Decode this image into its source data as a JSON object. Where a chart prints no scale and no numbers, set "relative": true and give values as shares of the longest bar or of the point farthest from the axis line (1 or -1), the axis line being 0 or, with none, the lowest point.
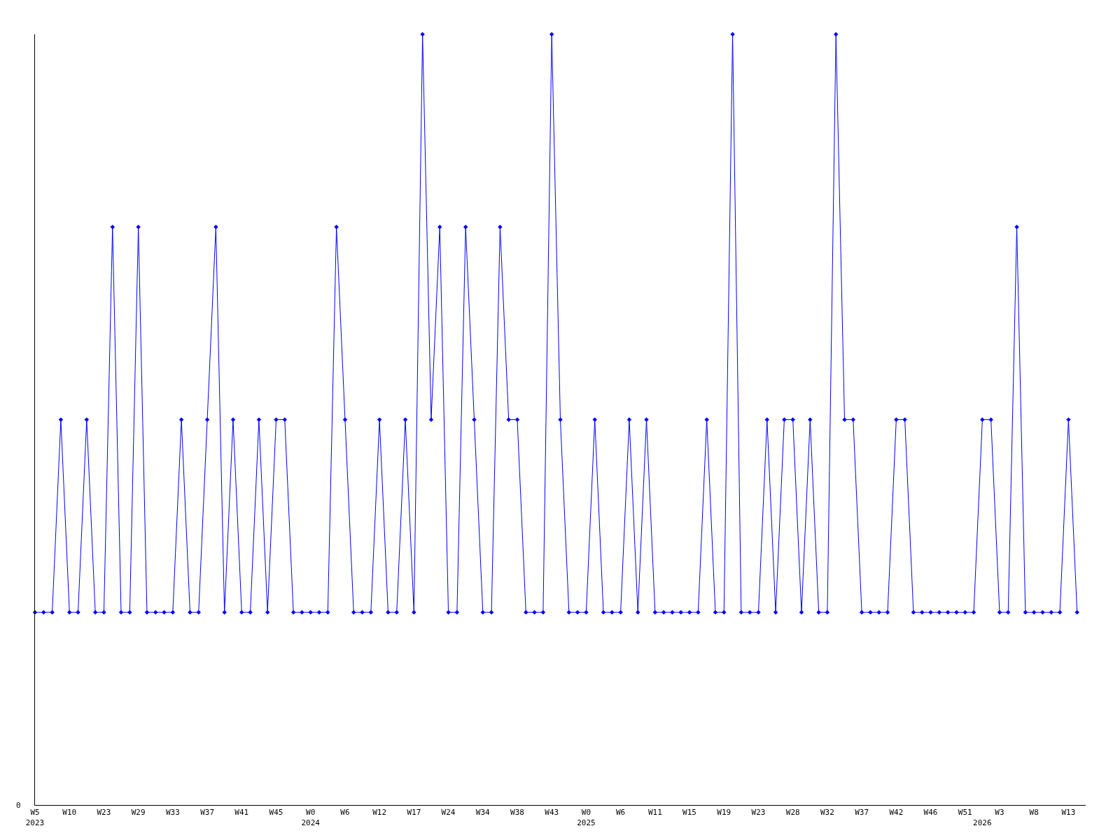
{
  "chart_data": {
    "type": "line",
    "relative": true,
    "marker": "diamond",
    "line_style": "solid",
    "annotations": [
      "0"
    ],
    "categories": [
      "W5\n2023",
      null,
      null,
      null,
      "W10",
      null,
      null,
      null,
      "W23",
      null,
      null,
      null,
      "W29",
      null,
      null,
      null,
      "W33",
      null,
      null,
      null,
      "W37",
      null,
      null,
      null,
      "W41",
      null,
      null,
      null,
      "W45",
      null,
      null,
      null,
      "W0\n2024",
      null,
      null,
      null,
      "W6",
      null,
      null,
      null,
      "W12",
      null,
      null,
      null,
      "W17",
      null,
      null,
      null,
      "W24",
      null,
      null,
      null,
      "W34",
      null,
      null,
      null,
      "W38",
      null,
      null,
      null,
      "W43",
      null,
      null,
      null,
      "W0\n2025",
      null,
      null,
      null,
      "W6",
      null,
      null,
      null,
      "W11",
      null,
      null,
      null,
      "W15",
      null,
      null,
      null,
      "W19",
      null,
      null,
      null,
      "W23",
      null,
      null,
      null,
      "W28",
      null,
      null,
      null,
      "W32",
      null,
      null,
      null,
      "W37",
      null,
      null,
      null,
      "W42",
      null,
      null,
      null,
      "W46",
      null,
      null,
      null,
      "W51",
      null,
      "\n2026",
      null,
      "W3",
      null,
      null,
      null,
      "W8",
      null,
      null,
      null,
      "W13",
      null
    ],
    "series": [
      {
        "color": "#0000ff",
        "values": [
          0.25,
          0.25,
          0.25,
          0.5,
          0.25,
          0.25,
          0.5,
          0.25,
          0.25,
          0.75,
          0.25,
          0.25,
          0.75,
          0.25,
          0.25,
          0.25,
          0.25,
          0.5,
          0.25,
          0.25,
          0.5,
          0.75,
          0.25,
          0.5,
          0.25,
          0.25,
          0.5,
          0.25,
          0.5,
          0.5,
          0.25,
          0.25,
          0.25,
          0.25,
          0.25,
          0.75,
          0.5,
          0.25,
          0.25,
          0.25,
          0.5,
          0.25,
          0.25,
          0.5,
          0.25,
          1,
          0.5,
          0.75,
          0.25,
          0.25,
          0.75,
          0.5,
          0.25,
          0.25,
          0.75,
          0.5,
          0.5,
          0.25,
          0.25,
          0.25,
          1,
          0.5,
          0.25,
          0.25,
          0.25,
          0.5,
          0.25,
          0.25,
          0.25,
          0.5,
          0.25,
          0.5,
          0.25,
          0.25,
          0.25,
          0.25,
          0.25,
          0.25,
          0.5,
          0.25,
          0.25,
          1,
          0.25,
          0.25,
          0.25,
          0.5,
          0.25,
          0.5,
          0.5,
          0.25,
          0.5,
          0.25,
          0.25,
          1,
          0.5,
          0.5,
          0.25,
          0.25,
          0.25,
          0.25,
          0.5,
          0.5,
          0.25,
          0.25,
          0.25,
          0.25,
          0.25,
          0.25,
          0.25,
          0.25,
          0.5,
          0.5,
          0.25,
          0.25,
          0.75,
          0.25,
          0.25,
          0.25,
          0.25,
          0.25,
          0.5,
          0.25
        ]
      }
    ]
  }
}
